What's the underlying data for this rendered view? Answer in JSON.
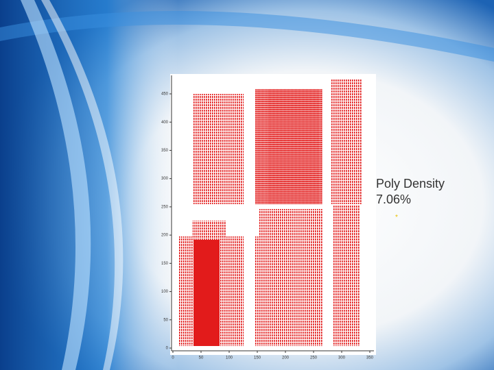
{
  "caption": {
    "title": "Poly Density",
    "value": "7.06%"
  },
  "plot": {
    "xticks": [
      0,
      50,
      100,
      150,
      200,
      250,
      300,
      350
    ],
    "yticks": [
      0,
      50,
      100,
      150,
      200,
      250,
      300,
      350,
      400,
      450
    ]
  }
}
